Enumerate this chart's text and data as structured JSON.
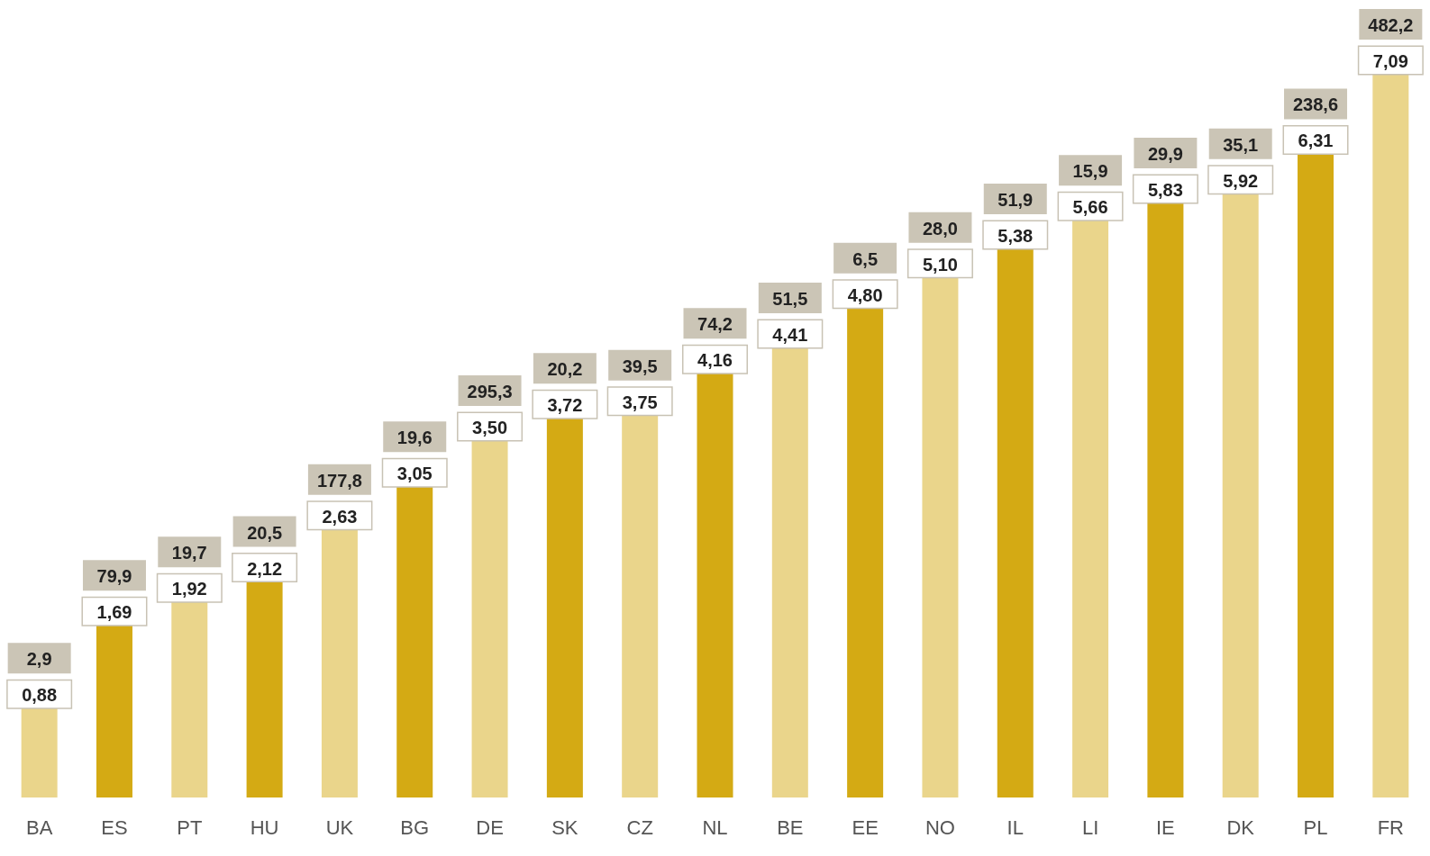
{
  "chart_data": {
    "type": "bar",
    "categories": [
      "BA",
      "ES",
      "PT",
      "HU",
      "UK",
      "BG",
      "DE",
      "SK",
      "CZ",
      "NL",
      "BE",
      "EE",
      "NO",
      "IL",
      "LI",
      "IE",
      "DK",
      "PL",
      "FR"
    ],
    "values": [
      0.88,
      1.69,
      1.92,
      2.12,
      2.63,
      3.05,
      3.5,
      3.72,
      3.75,
      4.16,
      4.41,
      4.8,
      5.1,
      5.38,
      5.66,
      5.83,
      5.92,
      6.31,
      7.09
    ],
    "value_labels": [
      "0,88",
      "1,69",
      "1,92",
      "2,12",
      "2,63",
      "3,05",
      "3,50",
      "3,72",
      "3,75",
      "4,16",
      "4,41",
      "4,80",
      "5,10",
      "5,38",
      "5,66",
      "5,83",
      "5,92",
      "6,31",
      "7,09"
    ],
    "colors": [
      "#ead58b",
      "#d4aa14",
      "#ead58b",
      "#d4aa14",
      "#ead58b",
      "#d4aa14",
      "#ead58b",
      "#d4aa14",
      "#ead58b",
      "#d4aa14",
      "#ead58b",
      "#d4aa14",
      "#ead58b",
      "#d4aa14",
      "#ead58b",
      "#d4aa14",
      "#ead58b",
      "#d4aa14",
      "#ead58b"
    ],
    "annotations": [
      {
        "text": "2,9",
        "x": "BA",
        "y": 0.88
      },
      {
        "text": "79,9",
        "x": "ES",
        "y": 1.69
      },
      {
        "text": "19,7",
        "x": "PT",
        "y": 1.92
      },
      {
        "text": "20,5",
        "x": "HU",
        "y": 2.12
      },
      {
        "text": "177,8",
        "x": "UK",
        "y": 2.63
      },
      {
        "text": "19,6",
        "x": "BG",
        "y": 3.05
      },
      {
        "text": "295,3",
        "x": "DE",
        "y": 3.5
      },
      {
        "text": "20,2",
        "x": "SK",
        "y": 3.72
      },
      {
        "text": "39,5",
        "x": "CZ",
        "y": 3.75
      },
      {
        "text": "74,2",
        "x": "NL",
        "y": 4.16
      },
      {
        "text": "51,5",
        "x": "BE",
        "y": 4.41
      },
      {
        "text": "6,5",
        "x": "EE",
        "y": 4.8
      },
      {
        "text": "28,0",
        "x": "NO",
        "y": 5.1
      },
      {
        "text": "51,9",
        "x": "IL",
        "y": 5.38
      },
      {
        "text": "15,9",
        "x": "LI",
        "y": 5.66
      },
      {
        "text": "29,9",
        "x": "IE",
        "y": 5.83
      },
      {
        "text": "35,1",
        "x": "DK",
        "y": 5.92
      },
      {
        "text": "238,6",
        "x": "PL",
        "y": 6.31
      },
      {
        "text": "482,2",
        "x": "FR",
        "y": 7.09
      }
    ]
  }
}
